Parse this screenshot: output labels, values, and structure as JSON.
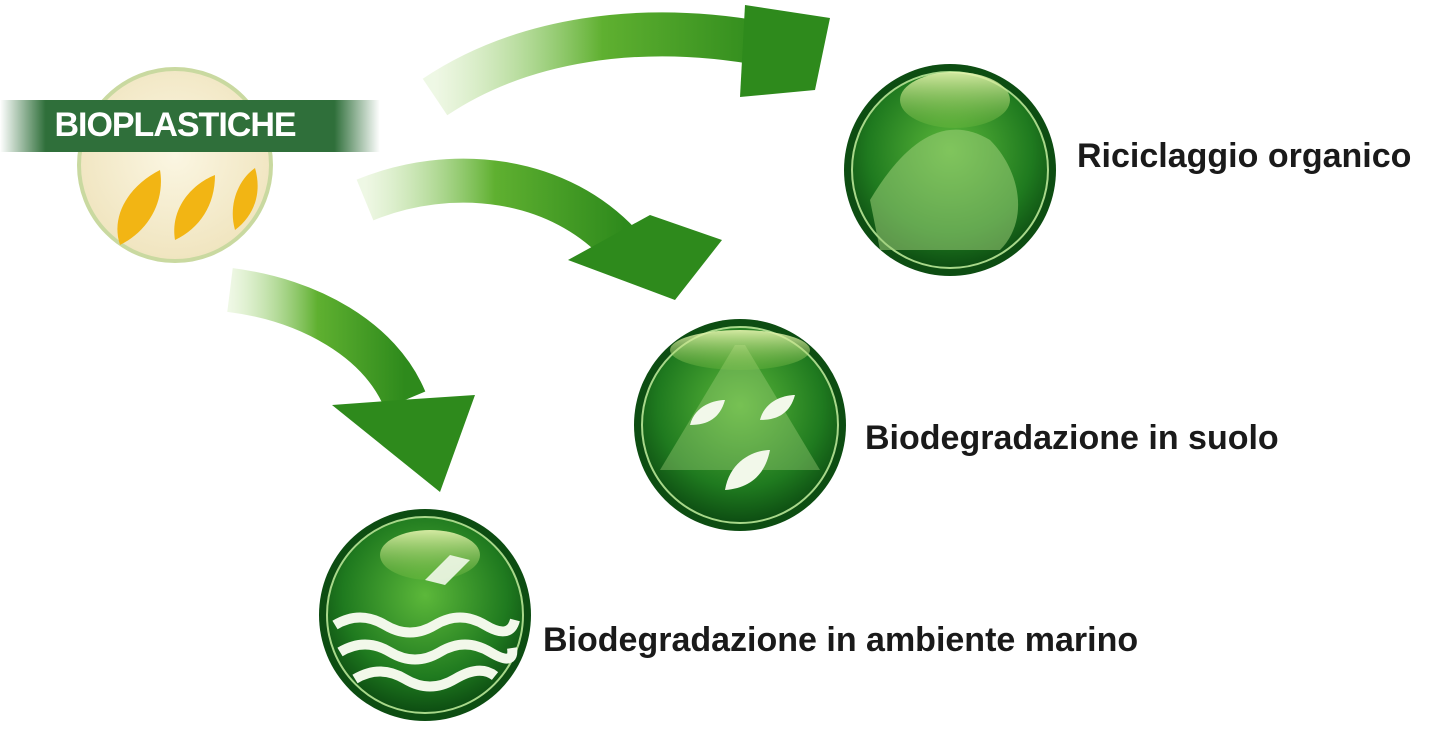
{
  "source": {
    "label": "BIOPLASTICHE"
  },
  "targets": [
    {
      "label": "Riciclaggio organico"
    },
    {
      "label": "Biodegradazione in suolo"
    },
    {
      "label": "Biodegradazione in ambiente marino"
    }
  ]
}
